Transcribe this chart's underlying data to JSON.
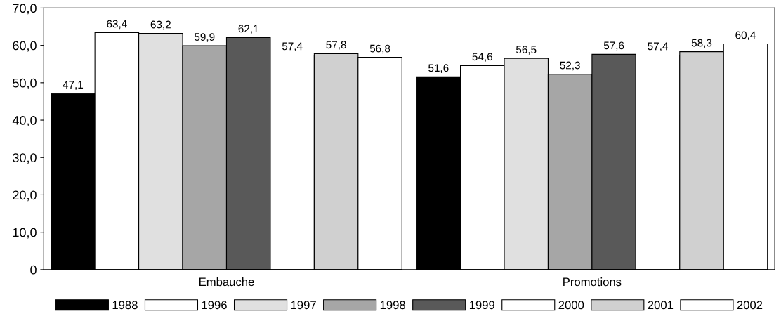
{
  "chart_data": {
    "type": "bar",
    "categories": [
      "Embauche",
      "Promotions"
    ],
    "series": [
      {
        "name": "1988",
        "color": "#000000",
        "values": [
          47.1,
          51.6
        ],
        "value_labels": [
          "47,1",
          "51,6"
        ]
      },
      {
        "name": "1996",
        "color": "#ffffff",
        "values": [
          63.4,
          54.6
        ],
        "value_labels": [
          "63,4",
          "54,6"
        ]
      },
      {
        "name": "1997",
        "color": "#e0e0e0",
        "values": [
          63.2,
          56.5
        ],
        "value_labels": [
          "63,2",
          "56,5"
        ]
      },
      {
        "name": "1998",
        "color": "#a6a6a6",
        "values": [
          59.9,
          52.3
        ],
        "value_labels": [
          "59,9",
          "52,3"
        ]
      },
      {
        "name": "1999",
        "color": "#595959",
        "values": [
          62.1,
          57.6
        ],
        "value_labels": [
          "62,1",
          "57,6"
        ]
      },
      {
        "name": "2000",
        "color": "#ffffff",
        "values": [
          57.4,
          57.4
        ],
        "value_labels": [
          "57,4",
          "57,4"
        ]
      },
      {
        "name": "2001",
        "color": "#d0d0d0",
        "values": [
          57.8,
          58.3
        ],
        "value_labels": [
          "57,8",
          "58,3"
        ]
      },
      {
        "name": "2002",
        "color": "#ffffff",
        "values": [
          56.8,
          60.4
        ],
        "value_labels": [
          "56,8",
          "60,4"
        ]
      }
    ],
    "ylim": [
      0,
      70
    ],
    "yticks": [
      0,
      {
        "value": 10,
        "label": "10,0"
      },
      {
        "value": 20,
        "label": "20,0"
      },
      {
        "value": 30,
        "label": "30,0"
      },
      {
        "value": 40,
        "label": "40,0"
      },
      {
        "value": 50,
        "label": "50,0"
      },
      {
        "value": 60,
        "label": "60,0"
      },
      {
        "value": 70,
        "label": "70,0"
      }
    ],
    "grid": false,
    "legend": "bottom"
  }
}
